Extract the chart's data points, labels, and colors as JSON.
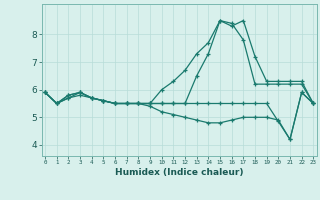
{
  "xlabel": "Humidex (Indice chaleur)",
  "background_color": "#d8f0ec",
  "grid_color": "#b8ddd8",
  "line_color": "#1a7a6e",
  "x_ticks": [
    0,
    1,
    2,
    3,
    4,
    5,
    6,
    7,
    8,
    9,
    10,
    11,
    12,
    13,
    14,
    15,
    16,
    17,
    18,
    19,
    20,
    21,
    22,
    23
  ],
  "y_ticks": [
    4,
    5,
    6,
    7,
    8
  ],
  "ylim": [
    3.6,
    9.1
  ],
  "xlim": [
    -0.3,
    23.3
  ],
  "series": [
    [
      5.9,
      5.5,
      5.7,
      5.9,
      5.7,
      5.6,
      5.5,
      5.5,
      5.5,
      5.4,
      5.2,
      5.1,
      5.0,
      4.9,
      4.8,
      4.8,
      4.9,
      5.0,
      5.0,
      5.0,
      4.9,
      4.2,
      5.9,
      5.5
    ],
    [
      5.9,
      5.5,
      5.7,
      5.8,
      5.7,
      5.6,
      5.5,
      5.5,
      5.5,
      5.5,
      6.0,
      6.3,
      6.7,
      7.3,
      7.7,
      8.5,
      8.3,
      8.5,
      7.2,
      6.3,
      6.3,
      6.3,
      6.3,
      5.5
    ],
    [
      5.9,
      5.5,
      5.8,
      5.9,
      5.7,
      5.6,
      5.5,
      5.5,
      5.5,
      5.5,
      5.5,
      5.5,
      5.5,
      6.5,
      7.3,
      8.5,
      8.4,
      7.8,
      6.2,
      6.2,
      6.2,
      6.2,
      6.2,
      5.5
    ],
    [
      5.9,
      5.5,
      5.8,
      5.9,
      5.7,
      5.6,
      5.5,
      5.5,
      5.5,
      5.5,
      5.5,
      5.5,
      5.5,
      5.5,
      5.5,
      5.5,
      5.5,
      5.5,
      5.5,
      5.5,
      4.85,
      4.2,
      5.9,
      5.5
    ]
  ]
}
